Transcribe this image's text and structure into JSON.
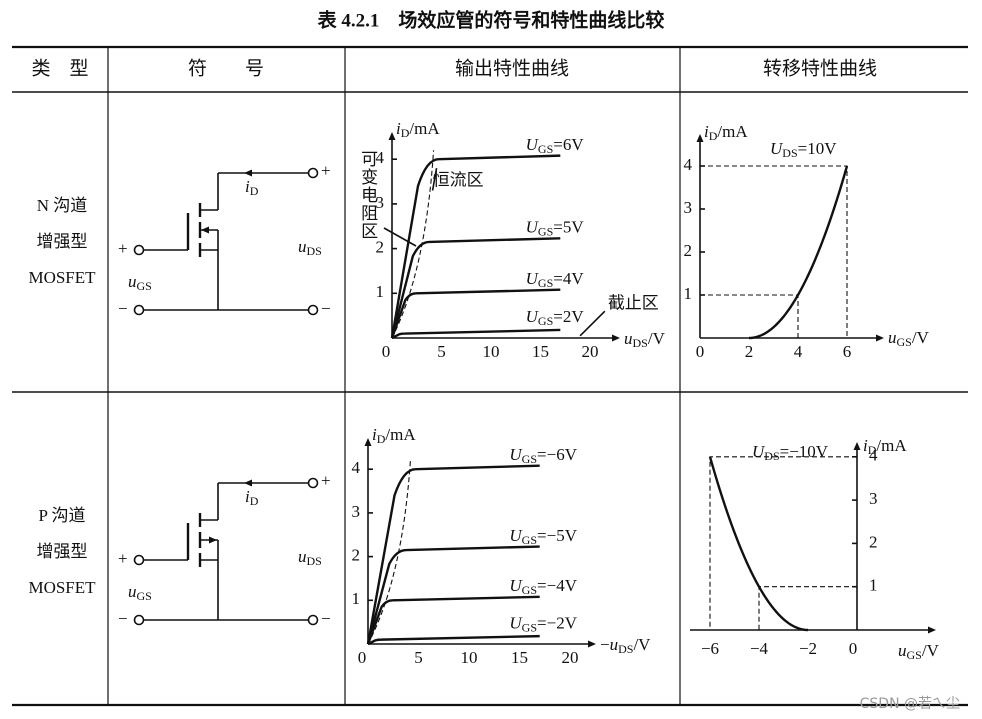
{
  "title": "表 4.2.1　场效应管的符号和特性曲线比较",
  "header": [
    "类　型",
    "符　　号",
    "输出特性曲线",
    "转移特性曲线"
  ],
  "rows": [
    {
      "type": [
        "N 沟道",
        "增强型",
        "MOSFET"
      ],
      "symbol": {
        "drain_terminal": "+",
        "source_terminal": "−",
        "gate_terminal": "+",
        "gate_minus": "−",
        "current": {
          "main": "i",
          "sub": "D"
        },
        "vds": {
          "main": "u",
          "sub": "DS"
        },
        "vgs": {
          "main": "u",
          "sub": "GS"
        }
      },
      "output": {
        "y_label": {
          "main": "i",
          "sub": "D",
          "post": "/mA"
        },
        "x_label": {
          "main": "u",
          "sub": "DS",
          "post": "/V"
        },
        "yticks": [
          "1",
          "2",
          "3",
          "4"
        ],
        "xticks": [
          "0",
          "5",
          "10",
          "15",
          "20"
        ],
        "curves": [
          {
            "main": "U",
            "sub": "GS",
            "post": "=6V"
          },
          {
            "main": "U",
            "sub": "GS",
            "post": "=5V"
          },
          {
            "main": "U",
            "sub": "GS",
            "post": "=4V"
          },
          {
            "main": "U",
            "sub": "GS",
            "post": "=2V"
          }
        ],
        "regions": {
          "ohmic": "可变电阻区",
          "saturation": "恒流区",
          "cutoff": "截止区"
        }
      },
      "transfer": {
        "y_label": {
          "main": "i",
          "sub": "D",
          "post": "/mA"
        },
        "x_label": {
          "main": "u",
          "sub": "GS",
          "post": "/V"
        },
        "condition": {
          "main": "U",
          "sub": "DS",
          "post": "=10V"
        },
        "yticks": [
          "1",
          "2",
          "3",
          "4"
        ],
        "xticks": [
          "0",
          "2",
          "4",
          "6"
        ]
      }
    },
    {
      "type": [
        "P 沟道",
        "增强型",
        "MOSFET"
      ],
      "symbol": {
        "drain_terminal": "+",
        "source_terminal": "−",
        "gate_terminal": "+",
        "gate_minus": "−",
        "current": {
          "main": "i",
          "sub": "D"
        },
        "vds": {
          "main": "u",
          "sub": "DS"
        },
        "vgs": {
          "main": "u",
          "sub": "GS"
        }
      },
      "output": {
        "y_label": {
          "main": "i",
          "sub": "D",
          "post": "/mA"
        },
        "x_label": {
          "pre": "−",
          "main": "u",
          "sub": "DS",
          "post": "/V"
        },
        "yticks": [
          "1",
          "2",
          "3",
          "4"
        ],
        "xticks": [
          "0",
          "5",
          "10",
          "15",
          "20"
        ],
        "curves": [
          {
            "main": "U",
            "sub": "GS",
            "post": "=−6V"
          },
          {
            "main": "U",
            "sub": "GS",
            "post": "=−5V"
          },
          {
            "main": "U",
            "sub": "GS",
            "post": "=−4V"
          },
          {
            "main": "U",
            "sub": "GS",
            "post": "=−2V"
          }
        ]
      },
      "transfer": {
        "y_label": {
          "main": "i",
          "sub": "D",
          "post": "/mA"
        },
        "x_label": {
          "main": "u",
          "sub": "GS",
          "post": "/V"
        },
        "condition": {
          "main": "U",
          "sub": "DS",
          "post": "=−10V"
        },
        "yticks": [
          "1",
          "2",
          "3",
          "4"
        ],
        "xticks": [
          "−6",
          "−4",
          "−2",
          "0"
        ]
      }
    }
  ],
  "watermark": "CSDN @若ㄟ尘"
}
